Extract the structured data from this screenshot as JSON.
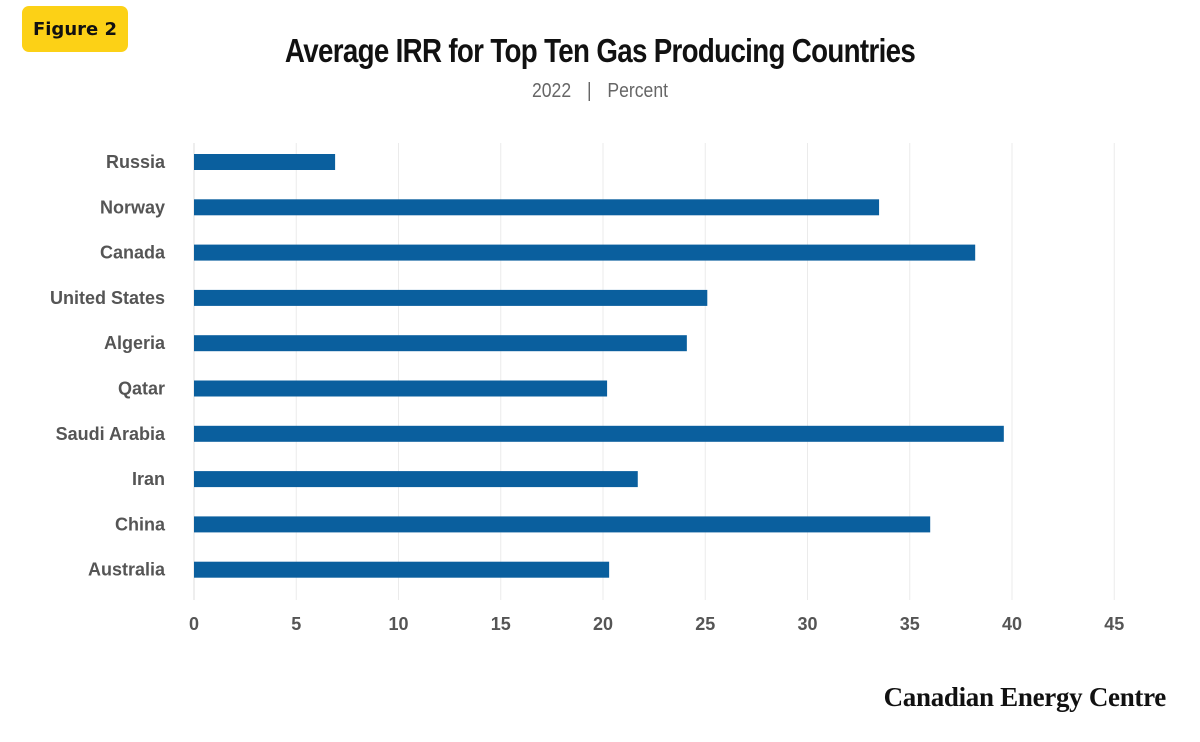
{
  "badge": {
    "label": "Figure 2"
  },
  "logo": {
    "text": "Canadian Energy Centre"
  },
  "colors": {
    "bar": "#0a5f9e",
    "grid": "#ebebeb",
    "badge": "#fcd116"
  },
  "chart_data": {
    "type": "bar",
    "orientation": "horizontal",
    "title": "Average IRR for Top Ten Gas Producing Countries",
    "subtitle_year": "2022",
    "subtitle_separator": "|",
    "subtitle_unit": "Percent",
    "categories": [
      "Russia",
      "Norway",
      "Canada",
      "United States",
      "Algeria",
      "Qatar",
      "Saudi Arabia",
      "Iran",
      "China",
      "Australia"
    ],
    "values": [
      6.9,
      33.5,
      38.2,
      25.1,
      24.1,
      20.2,
      39.6,
      21.7,
      36.0,
      20.3
    ],
    "xlim": [
      0,
      45
    ],
    "xticks": [
      0,
      5,
      10,
      15,
      20,
      25,
      30,
      35,
      40,
      45
    ],
    "xlabel": "",
    "ylabel": "",
    "grid": true,
    "legend": "none"
  }
}
